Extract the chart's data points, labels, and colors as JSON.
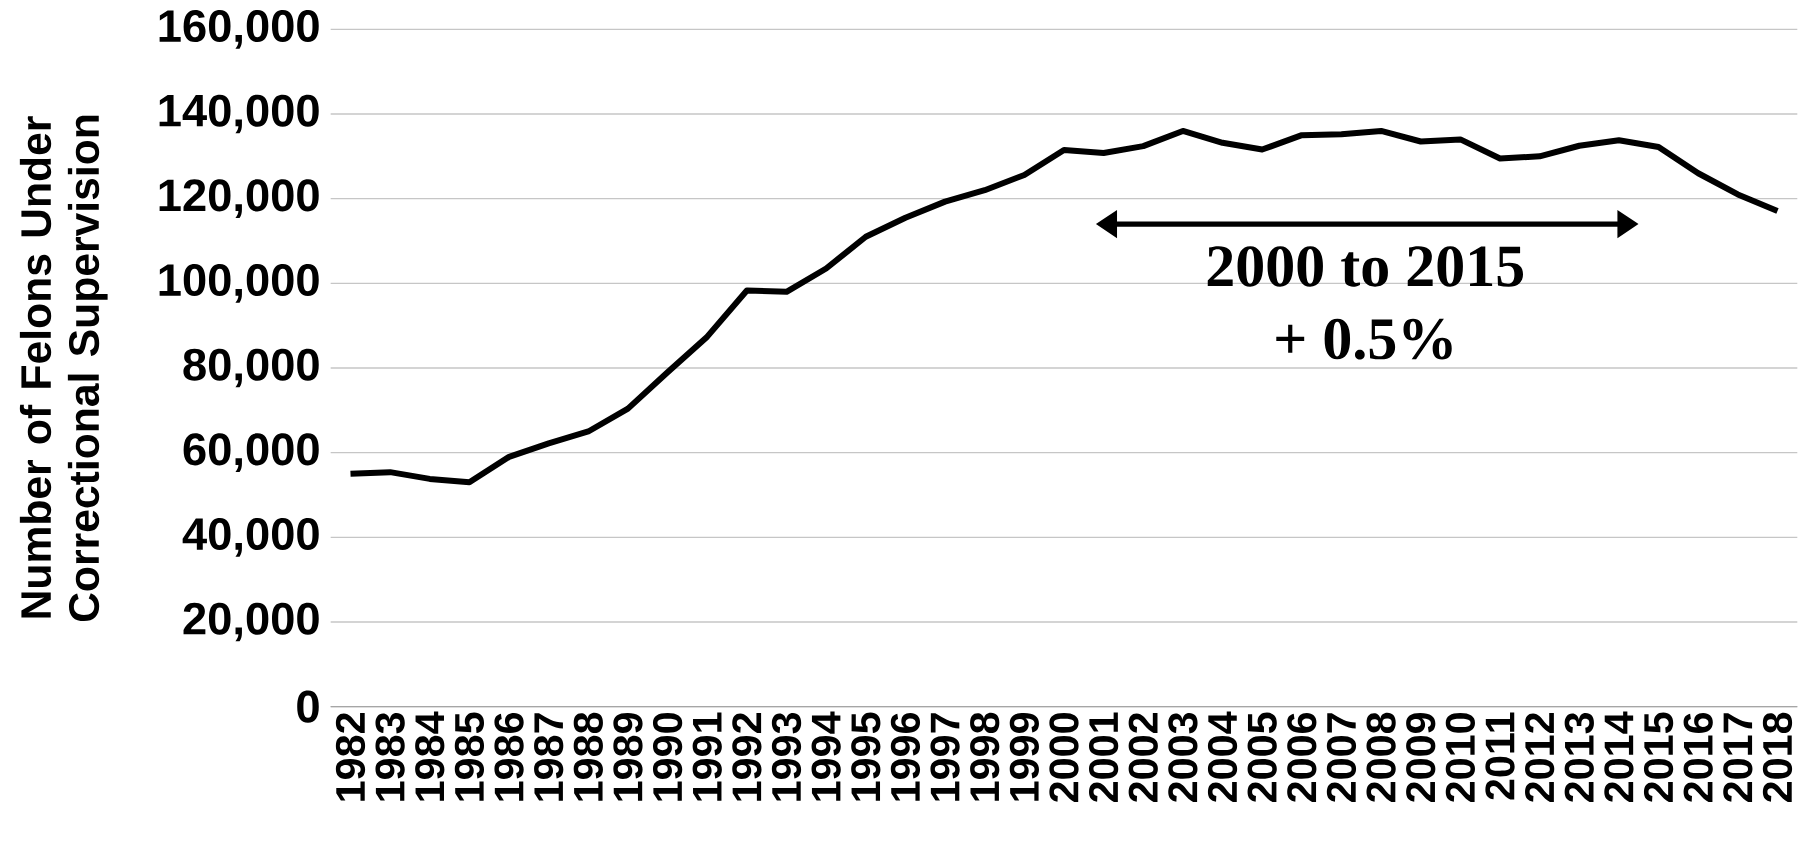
{
  "chart_data": {
    "type": "line",
    "ylabel": "Number of Felons Under Correctional Supervision",
    "categories": [
      "1982",
      "1983",
      "1984",
      "1985",
      "1986",
      "1987",
      "1988",
      "1989",
      "1990",
      "1991",
      "1992",
      "1993",
      "1994",
      "1995",
      "1996",
      "1997",
      "1998",
      "1999",
      "2000",
      "2001",
      "2002",
      "2003",
      "2004",
      "2005",
      "2006",
      "2007",
      "2008",
      "2009",
      "2010",
      "2011",
      "2012",
      "2013",
      "2014",
      "2015",
      "2016",
      "2017",
      "2018"
    ],
    "series": [
      {
        "color": "#000000",
        "values": [
          55000,
          55400,
          53800,
          53000,
          59000,
          62200,
          65000,
          70400,
          79000,
          87400,
          98300,
          98000,
          103500,
          111000,
          115500,
          119300,
          122000,
          125600,
          131500,
          130800,
          132400,
          136000,
          133200,
          131600,
          135000,
          135200,
          136000,
          133500,
          134000,
          129500,
          130000,
          132500,
          133800,
          132200,
          126000,
          121000,
          117100
        ]
      }
    ],
    "ylim": [
      0,
      160000
    ],
    "yticks": [
      {
        "value": 0,
        "label": "0"
      },
      {
        "value": 20000,
        "label": "20,000"
      },
      {
        "value": 40000,
        "label": "40,000"
      },
      {
        "value": 60000,
        "label": "60,000"
      },
      {
        "value": 80000,
        "label": "80,000"
      },
      {
        "value": 100000,
        "label": "100,000"
      },
      {
        "value": 120000,
        "label": "120,000"
      },
      {
        "value": 140000,
        "label": "140,000"
      },
      {
        "value": 160000,
        "label": "160,000"
      }
    ],
    "grid": "y",
    "marker": "none",
    "line_style": "solid",
    "annotations": [
      "2000 to 2015",
      "+ 0.5%"
    ]
  }
}
